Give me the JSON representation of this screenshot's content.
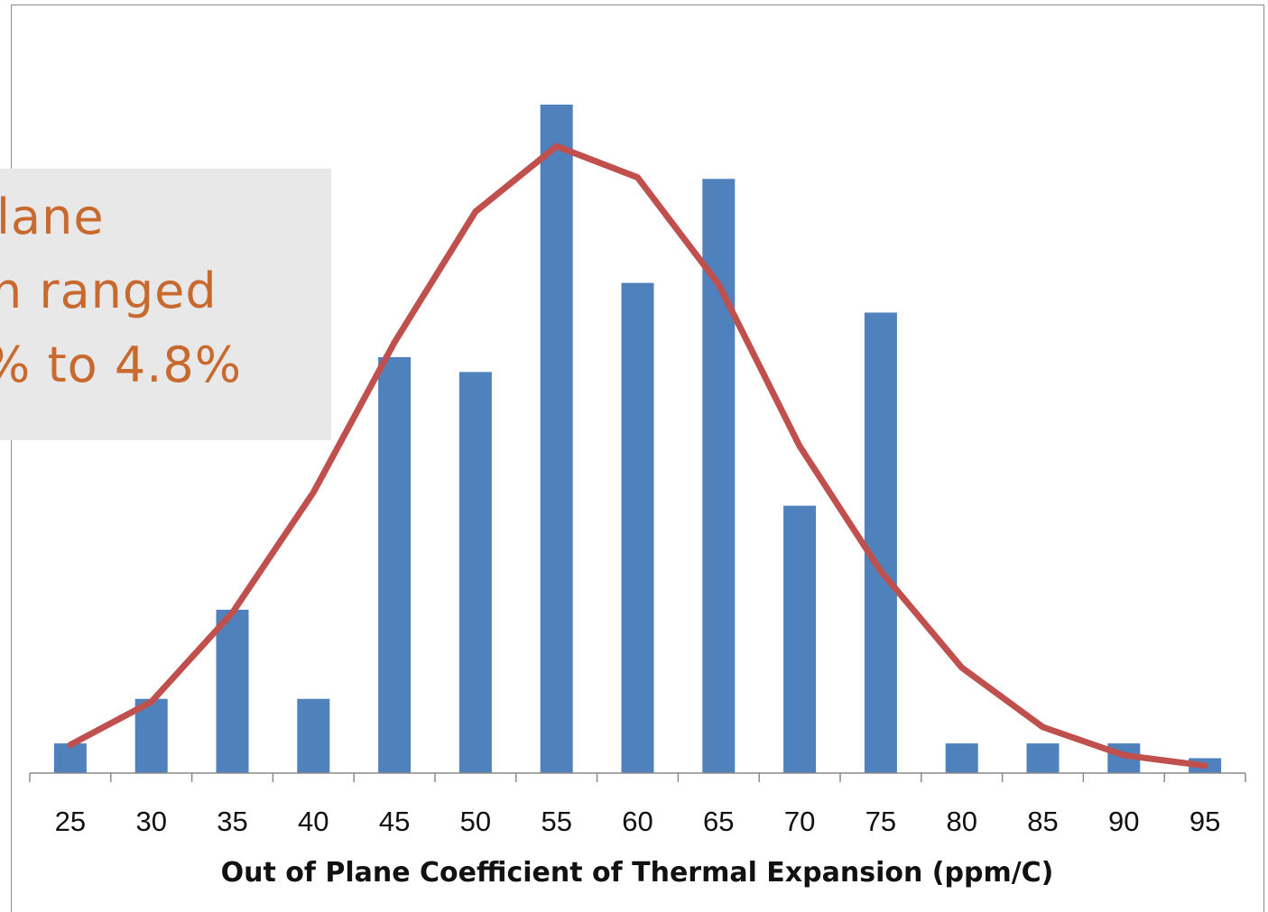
{
  "chart_data": {
    "type": "bar",
    "categories": [
      "25",
      "30",
      "35",
      "40",
      "45",
      "50",
      "55",
      "60",
      "65",
      "70",
      "75",
      "80",
      "85",
      "90",
      "95"
    ],
    "series": [
      {
        "type": "bar",
        "values": [
          2,
          5,
          11,
          5,
          28,
          27,
          45,
          33,
          40,
          18,
          31,
          2,
          2,
          2,
          1
        ]
      },
      {
        "type": "line",
        "values": [
          1.9,
          4.8,
          10.8,
          18.9,
          29.0,
          37.8,
          42.2,
          40.1,
          32.9,
          22.0,
          13.6,
          7.1,
          3.1,
          1.2,
          0.5
        ]
      }
    ],
    "colors": {
      "bar": "#4f81bd",
      "line": "#c0504d"
    },
    "xlabel": "Out of Plane Coefficient of Thermal Expansion (ppm/C)",
    "ylabel": "",
    "ylim": [
      0,
      45
    ],
    "grid": false
  },
  "callout": {
    "lines": [
      "lane",
      "n ranged",
      "% to 4.8%"
    ]
  }
}
